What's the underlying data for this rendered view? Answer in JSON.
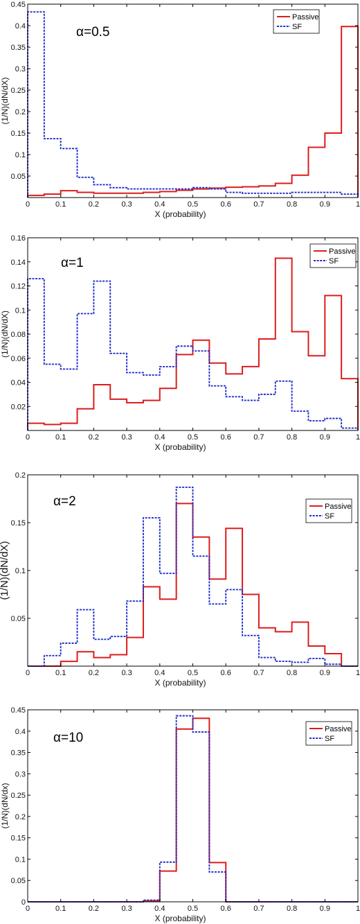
{
  "chart_data": [
    {
      "type": "line",
      "style": "step histogram",
      "annotation": "α=0.5",
      "xlabel": "X (probability)",
      "ylabel": "(1/N)(dN/dX)",
      "xlim": [
        0,
        1
      ],
      "ylim": [
        0,
        0.45
      ],
      "xticks": [
        0,
        0.1,
        0.2,
        0.3,
        0.4,
        0.5,
        0.6,
        0.7,
        0.8,
        0.9,
        1
      ],
      "yticks": [
        0.05,
        0.1,
        0.15,
        0.2,
        0.25,
        0.3,
        0.35,
        0.4,
        0.45
      ],
      "xtick_labels": [
        "0",
        "0.1",
        "0.2",
        "0.3",
        "0.4",
        "0.5",
        "0.6",
        "0.7",
        "0.8",
        "0.9",
        "1"
      ],
      "ytick_labels": [
        "0.05",
        "0.1",
        "0.15",
        "0.2",
        "0.25",
        "0.3",
        "0.35",
        "0.4",
        "0.45"
      ],
      "legend_position": "top-right",
      "bin_edges": [
        0,
        0.05,
        0.1,
        0.15,
        0.2,
        0.25,
        0.3,
        0.35,
        0.4,
        0.45,
        0.5,
        0.55,
        0.6,
        0.65,
        0.7,
        0.75,
        0.8,
        0.85,
        0.9,
        0.95,
        1
      ],
      "series": [
        {
          "name": "Passive",
          "color": "#dd1c1c",
          "dash": "solid",
          "values": [
            0.005,
            0.008,
            0.016,
            0.012,
            0.01,
            0.01,
            0.01,
            0.012,
            0.014,
            0.017,
            0.02,
            0.022,
            0.024,
            0.025,
            0.027,
            0.033,
            0.052,
            0.117,
            0.15,
            0.398
          ]
        },
        {
          "name": "SF",
          "color": "#1f2fcc",
          "dash": "dotted",
          "values": [
            0.432,
            0.137,
            0.114,
            0.047,
            0.03,
            0.023,
            0.02,
            0.02,
            0.02,
            0.02,
            0.023,
            0.02,
            0.012,
            0.01,
            0.01,
            0.01,
            0.012,
            0.012,
            0.012,
            0.008
          ]
        }
      ]
    },
    {
      "type": "line",
      "style": "step histogram",
      "annotation": "α=1",
      "xlabel": "X (probability)",
      "ylabel": "(1/N)(dN/dX)",
      "xlim": [
        0,
        1
      ],
      "ylim": [
        0,
        0.16
      ],
      "xticks": [
        0,
        0.1,
        0.2,
        0.3,
        0.4,
        0.5,
        0.6,
        0.7,
        0.8,
        0.9,
        1
      ],
      "yticks": [
        0.02,
        0.04,
        0.06,
        0.08,
        0.1,
        0.12,
        0.14,
        0.16
      ],
      "xtick_labels": [
        "0",
        "0.1",
        "0.2",
        "0.3",
        "0.4",
        "0.5",
        "0.6",
        "0.7",
        "0.8",
        "0.9",
        "1"
      ],
      "ytick_labels": [
        "0.02",
        "0.04",
        "0.06",
        "0.08",
        "0.1",
        "0.12",
        "0.14",
        "0.16"
      ],
      "legend_position": "top-right",
      "bin_edges": [
        0,
        0.05,
        0.1,
        0.15,
        0.2,
        0.25,
        0.3,
        0.35,
        0.4,
        0.45,
        0.5,
        0.55,
        0.6,
        0.65,
        0.7,
        0.75,
        0.8,
        0.85,
        0.9,
        0.95,
        1
      ],
      "series": [
        {
          "name": "Passive",
          "color": "#dd1c1c",
          "dash": "solid",
          "values": [
            0.006,
            0.005,
            0.006,
            0.018,
            0.038,
            0.026,
            0.023,
            0.025,
            0.035,
            0.063,
            0.075,
            0.056,
            0.047,
            0.053,
            0.076,
            0.143,
            0.082,
            0.062,
            0.112,
            0.043
          ]
        },
        {
          "name": "SF",
          "color": "#1f2fcc",
          "dash": "dotted",
          "values": [
            0.126,
            0.055,
            0.051,
            0.097,
            0.124,
            0.064,
            0.048,
            0.046,
            0.053,
            0.07,
            0.066,
            0.037,
            0.028,
            0.025,
            0.03,
            0.041,
            0.016,
            0.008,
            0.01,
            0.002
          ]
        }
      ]
    },
    {
      "type": "line",
      "style": "step histogram",
      "annotation": "α=2",
      "xlabel": "X (probability)",
      "ylabel": "(1/N)(dN/dX)",
      "xlim": [
        0,
        1
      ],
      "ylim": [
        0,
        0.2
      ],
      "xticks": [
        0,
        0.1,
        0.2,
        0.3,
        0.4,
        0.5,
        0.6,
        0.7,
        0.8,
        0.9,
        1
      ],
      "yticks": [
        0.05,
        0.1,
        0.15,
        0.2
      ],
      "xtick_labels": [
        "0",
        "0.1",
        "0.2",
        "0.3",
        "0.4",
        "0.5",
        "0.6",
        "0.7",
        "0.8",
        "0.9",
        "1"
      ],
      "ytick_labels": [
        "0.05",
        "0.1",
        "0.15",
        "0.2"
      ],
      "legend_position": "top-right",
      "bin_edges": [
        0,
        0.05,
        0.1,
        0.15,
        0.2,
        0.25,
        0.3,
        0.35,
        0.4,
        0.45,
        0.5,
        0.55,
        0.6,
        0.65,
        0.7,
        0.75,
        0.8,
        0.85,
        0.9,
        0.95,
        1
      ],
      "series": [
        {
          "name": "Passive",
          "color": "#dd1c1c",
          "dash": "solid",
          "values": [
            0.0,
            0.0,
            0.005,
            0.015,
            0.009,
            0.012,
            0.03,
            0.083,
            0.07,
            0.17,
            0.135,
            0.091,
            0.144,
            0.075,
            0.04,
            0.036,
            0.046,
            0.021,
            0.013,
            0.0
          ]
        },
        {
          "name": "SF",
          "color": "#1f2fcc",
          "dash": "dotted",
          "values": [
            0.0,
            0.011,
            0.024,
            0.059,
            0.028,
            0.031,
            0.068,
            0.155,
            0.097,
            0.187,
            0.115,
            0.065,
            0.08,
            0.032,
            0.009,
            0.005,
            0.004,
            0.008,
            0.002,
            0.0
          ]
        }
      ]
    },
    {
      "type": "line",
      "style": "step histogram",
      "annotation": "α=10",
      "xlabel": "X (probability)",
      "ylabel": "(1/N)(dN/dx)",
      "xlim": [
        0,
        1
      ],
      "ylim": [
        0,
        0.45
      ],
      "xticks": [
        0,
        0.1,
        0.2,
        0.3,
        0.4,
        0.5,
        0.6,
        0.7,
        0.8,
        0.9,
        1
      ],
      "yticks": [
        0,
        0.05,
        0.1,
        0.15,
        0.2,
        0.25,
        0.3,
        0.35,
        0.4,
        0.45
      ],
      "xtick_labels": [
        "0",
        "0.1",
        "0.2",
        "0.3",
        "0.4",
        "0.5",
        "0.6",
        "0.7",
        "0.8",
        "0.9",
        "1"
      ],
      "ytick_labels": [
        "0",
        "0.05",
        "0.1",
        "0.15",
        "0.2",
        "0.25",
        "0.3",
        "0.35",
        "0.4",
        "0.45"
      ],
      "legend_position": "top-right",
      "bin_edges": [
        0,
        0.05,
        0.1,
        0.15,
        0.2,
        0.25,
        0.3,
        0.35,
        0.4,
        0.45,
        0.5,
        0.55,
        0.6,
        0.65,
        0.7,
        0.75,
        0.8,
        0.85,
        0.9,
        0.95,
        1
      ],
      "series": [
        {
          "name": "Passive",
          "color": "#dd1c1c",
          "dash": "solid",
          "values": [
            0.0,
            0.0,
            0.0,
            0.0,
            0.0,
            0.0,
            0.0,
            0.002,
            0.072,
            0.405,
            0.43,
            0.092,
            0.0,
            0.0,
            0.0,
            0.0,
            0.0,
            0.0,
            0.0,
            0.0
          ]
        },
        {
          "name": "SF",
          "color": "#1f2fcc",
          "dash": "dotted",
          "values": [
            0.0,
            0.0,
            0.0,
            0.0,
            0.0,
            0.0,
            0.0,
            0.004,
            0.093,
            0.436,
            0.398,
            0.07,
            0.0,
            0.0,
            0.0,
            0.0,
            0.0,
            0.0,
            0.0,
            0.0
          ]
        }
      ]
    }
  ]
}
